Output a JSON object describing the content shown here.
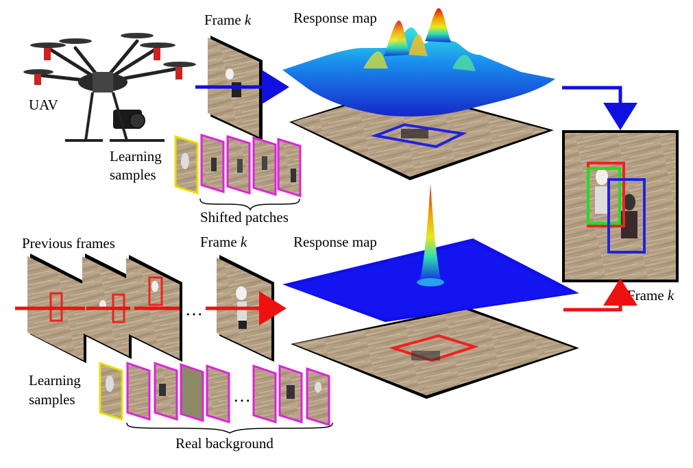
{
  "labels": {
    "uav": "UAV",
    "learning_samples_top_1": "Learning",
    "learning_samples_top_2": "samples",
    "frame_top": "Frame",
    "frame_top_k": "k",
    "response_map_top": "Response map",
    "shifted_patches": "Shifted patches",
    "previous_frames": "Previous frames",
    "frame_bottom": "Frame",
    "frame_bottom_k": "k",
    "response_map_bottom": "Response map",
    "learning_samples_bottom_1": "Learning",
    "learning_samples_bottom_2": "samples",
    "real_background": "Real background",
    "frame_result": "Frame",
    "frame_result_k": "k",
    "ellipsis_frames": "…",
    "ellipsis_samples": "…"
  },
  "colors": {
    "blue_arrow": "#1010e0",
    "red_arrow": "#ee1111",
    "sample_target_border": "#e8e000",
    "sample_patch_border": "#dd22dd",
    "bbox_blue": "#2222dd",
    "bbox_red": "#ee2222",
    "bbox_green": "#22dd22",
    "ground": "#b9a58a"
  }
}
